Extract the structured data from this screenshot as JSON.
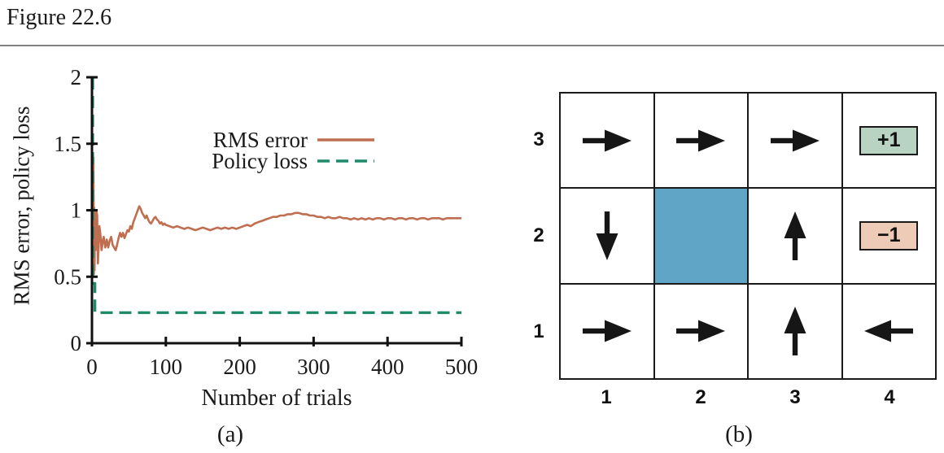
{
  "figure": {
    "title": "Figure 22.6"
  },
  "chart_data": {
    "type": "line",
    "caption": "(a)",
    "xlabel": "Number of trials",
    "ylabel": "RMS error, policy loss",
    "xlim": [
      0,
      500
    ],
    "ylim": [
      0,
      2
    ],
    "xticks": [
      0,
      100,
      200,
      300,
      400,
      500
    ],
    "yticks": [
      0,
      0.5,
      1,
      1.5,
      2
    ],
    "grid": false,
    "legend_position": "upper-center-right",
    "series": [
      {
        "name": "RMS error",
        "color": "#c06e50",
        "style": "solid",
        "points": [
          [
            2,
            1.4
          ],
          [
            2.5,
            0.52
          ],
          [
            3,
            1.02
          ],
          [
            3.5,
            0.55
          ],
          [
            4,
            0.98
          ],
          [
            5,
            0.7
          ],
          [
            6,
            1.0
          ],
          [
            7,
            0.96
          ],
          [
            8,
            0.6
          ],
          [
            9,
            0.72
          ],
          [
            10,
            0.88
          ],
          [
            11,
            0.84
          ],
          [
            12,
            0.78
          ],
          [
            13,
            0.7
          ],
          [
            14,
            0.74
          ],
          [
            15,
            0.78
          ],
          [
            16,
            0.8
          ],
          [
            17,
            0.76
          ],
          [
            18,
            0.72
          ],
          [
            19,
            0.74
          ],
          [
            20,
            0.78
          ],
          [
            22,
            0.72
          ],
          [
            24,
            0.77
          ],
          [
            26,
            0.8
          ],
          [
            28,
            0.74
          ],
          [
            30,
            0.72
          ],
          [
            32,
            0.7
          ],
          [
            34,
            0.74
          ],
          [
            36,
            0.79
          ],
          [
            38,
            0.83
          ],
          [
            40,
            0.8
          ],
          [
            42,
            0.83
          ],
          [
            44,
            0.79
          ],
          [
            46,
            0.82
          ],
          [
            48,
            0.85
          ],
          [
            50,
            0.84
          ],
          [
            52,
            0.88
          ],
          [
            54,
            0.86
          ],
          [
            56,
            0.91
          ],
          [
            58,
            0.94
          ],
          [
            60,
            0.97
          ],
          [
            62,
            1.0
          ],
          [
            64,
            1.03
          ],
          [
            66,
            1.01
          ],
          [
            68,
            0.98
          ],
          [
            70,
            0.96
          ],
          [
            72,
            0.94
          ],
          [
            74,
            0.96
          ],
          [
            76,
            0.93
          ],
          [
            78,
            0.91
          ],
          [
            80,
            0.9
          ],
          [
            82,
            0.92
          ],
          [
            84,
            0.94
          ],
          [
            86,
            0.95
          ],
          [
            88,
            0.93
          ],
          [
            90,
            0.92
          ],
          [
            92,
            0.9
          ],
          [
            94,
            0.91
          ],
          [
            96,
            0.89
          ],
          [
            98,
            0.9
          ],
          [
            100,
            0.89
          ],
          [
            105,
            0.88
          ],
          [
            110,
            0.87
          ],
          [
            115,
            0.88
          ],
          [
            120,
            0.87
          ],
          [
            125,
            0.86
          ],
          [
            130,
            0.87
          ],
          [
            135,
            0.86
          ],
          [
            140,
            0.85
          ],
          [
            145,
            0.86
          ],
          [
            150,
            0.87
          ],
          [
            155,
            0.86
          ],
          [
            160,
            0.85
          ],
          [
            165,
            0.86
          ],
          [
            170,
            0.87
          ],
          [
            175,
            0.86
          ],
          [
            180,
            0.87
          ],
          [
            185,
            0.86
          ],
          [
            190,
            0.87
          ],
          [
            195,
            0.86
          ],
          [
            200,
            0.87
          ],
          [
            205,
            0.88
          ],
          [
            210,
            0.89
          ],
          [
            215,
            0.88
          ],
          [
            220,
            0.9
          ],
          [
            225,
            0.91
          ],
          [
            230,
            0.92
          ],
          [
            235,
            0.93
          ],
          [
            240,
            0.94
          ],
          [
            245,
            0.95
          ],
          [
            250,
            0.95
          ],
          [
            255,
            0.96
          ],
          [
            260,
            0.96
          ],
          [
            265,
            0.97
          ],
          [
            270,
            0.97
          ],
          [
            275,
            0.98
          ],
          [
            280,
            0.98
          ],
          [
            285,
            0.97
          ],
          [
            290,
            0.97
          ],
          [
            295,
            0.96
          ],
          [
            300,
            0.96
          ],
          [
            305,
            0.95
          ],
          [
            310,
            0.95
          ],
          [
            315,
            0.94
          ],
          [
            320,
            0.95
          ],
          [
            325,
            0.94
          ],
          [
            330,
            0.94
          ],
          [
            335,
            0.95
          ],
          [
            340,
            0.94
          ],
          [
            345,
            0.94
          ],
          [
            350,
            0.93
          ],
          [
            355,
            0.94
          ],
          [
            360,
            0.93
          ],
          [
            365,
            0.94
          ],
          [
            370,
            0.93
          ],
          [
            375,
            0.94
          ],
          [
            380,
            0.93
          ],
          [
            385,
            0.94
          ],
          [
            390,
            0.94
          ],
          [
            395,
            0.93
          ],
          [
            400,
            0.94
          ],
          [
            405,
            0.94
          ],
          [
            410,
            0.93
          ],
          [
            415,
            0.94
          ],
          [
            420,
            0.94
          ],
          [
            425,
            0.93
          ],
          [
            430,
            0.94
          ],
          [
            435,
            0.94
          ],
          [
            440,
            0.93
          ],
          [
            445,
            0.94
          ],
          [
            450,
            0.94
          ],
          [
            455,
            0.93
          ],
          [
            460,
            0.94
          ],
          [
            465,
            0.94
          ],
          [
            470,
            0.94
          ],
          [
            475,
            0.93
          ],
          [
            480,
            0.94
          ],
          [
            485,
            0.94
          ],
          [
            490,
            0.94
          ],
          [
            495,
            0.94
          ],
          [
            500,
            0.94
          ]
        ]
      },
      {
        "name": "Policy loss",
        "color": "#1e8a6a",
        "style": "dashed",
        "points": [
          [
            1,
            2.0
          ],
          [
            1,
            0.45
          ],
          [
            4,
            0.45
          ],
          [
            4,
            0.23
          ],
          [
            500,
            0.23
          ]
        ]
      }
    ]
  },
  "grid_world": {
    "caption": "(b)",
    "row_labels": [
      "3",
      "2",
      "1"
    ],
    "col_labels": [
      "1",
      "2",
      "3",
      "4"
    ],
    "wall_color": "#60a5c5",
    "cells": [
      [
        {
          "type": "arrow",
          "dir": "right"
        },
        {
          "type": "arrow",
          "dir": "right"
        },
        {
          "type": "arrow",
          "dir": "right"
        },
        {
          "type": "terminal",
          "label": "+1",
          "color": "#b9d3c2"
        }
      ],
      [
        {
          "type": "arrow",
          "dir": "down"
        },
        {
          "type": "wall"
        },
        {
          "type": "arrow",
          "dir": "up"
        },
        {
          "type": "terminal",
          "label": "−1",
          "color": "#eecbb6"
        }
      ],
      [
        {
          "type": "arrow",
          "dir": "right"
        },
        {
          "type": "arrow",
          "dir": "right"
        },
        {
          "type": "arrow",
          "dir": "up"
        },
        {
          "type": "arrow",
          "dir": "left"
        }
      ]
    ]
  }
}
